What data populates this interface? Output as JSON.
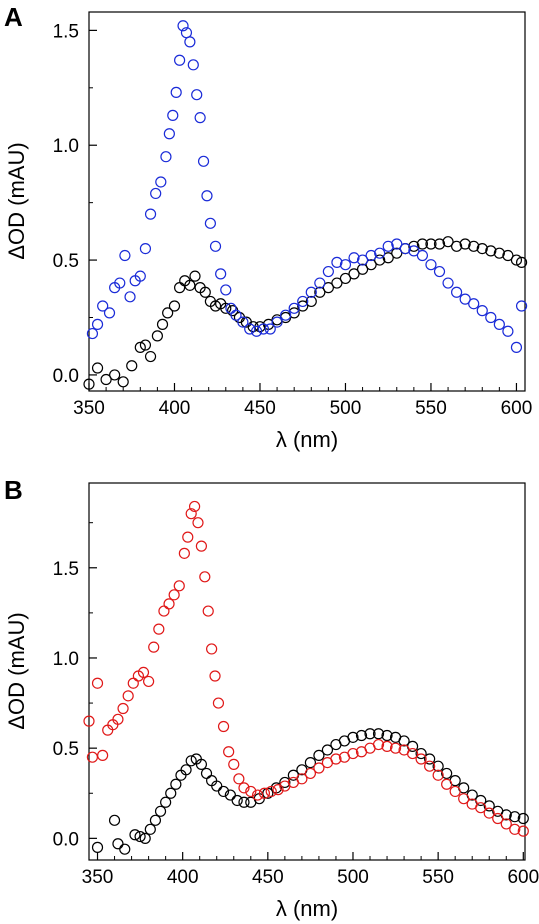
{
  "panels": [
    {
      "panel_label": "A",
      "marker_colors": [
        "#000000",
        "#1a2bd8"
      ]
    },
    {
      "panel_label": "B",
      "marker_colors": [
        "#000000",
        "#e01818"
      ]
    }
  ],
  "chart_data": [
    {
      "type": "scatter",
      "xlabel": "λ (nm)",
      "ylabel": "ΔOD (mAU)",
      "xlim": [
        350,
        605
      ],
      "ylim": [
        -0.07,
        1.58
      ],
      "x_ticks": [
        350,
        400,
        450,
        500,
        550,
        600
      ],
      "x_tick_labels": [
        "350",
        "400",
        "450",
        "500",
        "550",
        "600"
      ],
      "y_ticks": [
        0.0,
        0.5,
        1.0,
        1.5
      ],
      "y_tick_labels": [
        "0.0",
        "0.5",
        "1.0",
        "1.5"
      ],
      "marker": "open-circle",
      "series": [
        {
          "color": "#000000",
          "points": [
            [
              350,
              -0.04
            ],
            [
              355,
              0.03
            ],
            [
              360,
              -0.02
            ],
            [
              365,
              0.0
            ],
            [
              370,
              -0.03
            ],
            [
              375,
              0.04
            ],
            [
              380,
              0.12
            ],
            [
              383,
              0.13
            ],
            [
              386,
              0.08
            ],
            [
              390,
              0.17
            ],
            [
              393,
              0.22
            ],
            [
              396,
              0.27
            ],
            [
              400,
              0.3
            ],
            [
              403,
              0.38
            ],
            [
              406,
              0.41
            ],
            [
              409,
              0.39
            ],
            [
              412,
              0.43
            ],
            [
              415,
              0.38
            ],
            [
              418,
              0.36
            ],
            [
              421,
              0.32
            ],
            [
              424,
              0.3
            ],
            [
              427,
              0.31
            ],
            [
              430,
              0.29
            ],
            [
              434,
              0.28
            ],
            [
              438,
              0.25
            ],
            [
              442,
              0.23
            ],
            [
              446,
              0.21
            ],
            [
              450,
              0.21
            ],
            [
              455,
              0.22
            ],
            [
              460,
              0.24
            ],
            [
              465,
              0.25
            ],
            [
              470,
              0.27
            ],
            [
              475,
              0.3
            ],
            [
              480,
              0.32
            ],
            [
              485,
              0.36
            ],
            [
              490,
              0.38
            ],
            [
              495,
              0.4
            ],
            [
              500,
              0.42
            ],
            [
              505,
              0.44
            ],
            [
              510,
              0.46
            ],
            [
              515,
              0.48
            ],
            [
              520,
              0.5
            ],
            [
              525,
              0.51
            ],
            [
              530,
              0.53
            ],
            [
              535,
              0.55
            ],
            [
              540,
              0.56
            ],
            [
              545,
              0.57
            ],
            [
              550,
              0.57
            ],
            [
              555,
              0.57
            ],
            [
              560,
              0.58
            ],
            [
              565,
              0.56
            ],
            [
              570,
              0.57
            ],
            [
              575,
              0.56
            ],
            [
              580,
              0.55
            ],
            [
              585,
              0.54
            ],
            [
              590,
              0.53
            ],
            [
              595,
              0.52
            ],
            [
              600,
              0.5
            ],
            [
              603,
              0.49
            ]
          ]
        },
        {
          "color": "#1a2bd8",
          "points": [
            [
              352,
              0.18
            ],
            [
              355,
              0.22
            ],
            [
              358,
              0.3
            ],
            [
              362,
              0.27
            ],
            [
              365,
              0.38
            ],
            [
              368,
              0.4
            ],
            [
              371,
              0.52
            ],
            [
              374,
              0.34
            ],
            [
              377,
              0.41
            ],
            [
              380,
              0.43
            ],
            [
              383,
              0.55
            ],
            [
              386,
              0.7
            ],
            [
              389,
              0.79
            ],
            [
              392,
              0.84
            ],
            [
              395,
              0.95
            ],
            [
              397,
              1.05
            ],
            [
              399,
              1.13
            ],
            [
              401,
              1.23
            ],
            [
              403,
              1.37
            ],
            [
              405,
              1.52
            ],
            [
              407,
              1.49
            ],
            [
              409,
              1.45
            ],
            [
              411,
              1.35
            ],
            [
              413,
              1.22
            ],
            [
              415,
              1.12
            ],
            [
              417,
              0.93
            ],
            [
              419,
              0.78
            ],
            [
              421,
              0.66
            ],
            [
              424,
              0.56
            ],
            [
              427,
              0.44
            ],
            [
              430,
              0.37
            ],
            [
              433,
              0.29
            ],
            [
              436,
              0.26
            ],
            [
              440,
              0.23
            ],
            [
              444,
              0.2
            ],
            [
              448,
              0.19
            ],
            [
              452,
              0.2
            ],
            [
              456,
              0.2
            ],
            [
              460,
              0.23
            ],
            [
              465,
              0.26
            ],
            [
              470,
              0.29
            ],
            [
              475,
              0.32
            ],
            [
              480,
              0.36
            ],
            [
              485,
              0.4
            ],
            [
              490,
              0.45
            ],
            [
              495,
              0.49
            ],
            [
              500,
              0.48
            ],
            [
              505,
              0.51
            ],
            [
              510,
              0.5
            ],
            [
              515,
              0.52
            ],
            [
              520,
              0.53
            ],
            [
              525,
              0.56
            ],
            [
              530,
              0.57
            ],
            [
              535,
              0.55
            ],
            [
              540,
              0.54
            ],
            [
              545,
              0.52
            ],
            [
              550,
              0.48
            ],
            [
              555,
              0.45
            ],
            [
              560,
              0.4
            ],
            [
              565,
              0.36
            ],
            [
              570,
              0.33
            ],
            [
              575,
              0.31
            ],
            [
              580,
              0.28
            ],
            [
              585,
              0.25
            ],
            [
              590,
              0.22
            ],
            [
              595,
              0.19
            ],
            [
              600,
              0.12
            ],
            [
              603,
              0.3
            ]
          ]
        }
      ]
    },
    {
      "type": "scatter",
      "xlabel": "λ (nm)",
      "ylabel": "ΔOD (mAU)",
      "xlim": [
        345,
        601
      ],
      "ylim": [
        -0.12,
        1.97
      ],
      "x_ticks": [
        350,
        400,
        450,
        500,
        550,
        600
      ],
      "x_tick_labels": [
        "350",
        "400",
        "450",
        "500",
        "550",
        "600"
      ],
      "y_ticks": [
        0.0,
        0.5,
        1.0,
        1.5
      ],
      "y_tick_labels": [
        "0.0",
        "0.5",
        "1.0",
        "1.5"
      ],
      "marker": "open-circle",
      "series": [
        {
          "color": "#000000",
          "points": [
            [
              350,
              -0.05
            ],
            [
              360,
              0.1
            ],
            [
              362,
              -0.03
            ],
            [
              366,
              -0.06
            ],
            [
              372,
              0.02
            ],
            [
              375,
              0.01
            ],
            [
              378,
              0.0
            ],
            [
              381,
              0.05
            ],
            [
              384,
              0.1
            ],
            [
              387,
              0.15
            ],
            [
              390,
              0.2
            ],
            [
              393,
              0.25
            ],
            [
              396,
              0.3
            ],
            [
              399,
              0.35
            ],
            [
              402,
              0.38
            ],
            [
              405,
              0.43
            ],
            [
              408,
              0.44
            ],
            [
              411,
              0.41
            ],
            [
              414,
              0.36
            ],
            [
              417,
              0.32
            ],
            [
              420,
              0.29
            ],
            [
              424,
              0.26
            ],
            [
              428,
              0.24
            ],
            [
              432,
              0.21
            ],
            [
              436,
              0.2
            ],
            [
              440,
              0.2
            ],
            [
              445,
              0.22
            ],
            [
              450,
              0.25
            ],
            [
              455,
              0.28
            ],
            [
              460,
              0.31
            ],
            [
              465,
              0.35
            ],
            [
              470,
              0.38
            ],
            [
              475,
              0.42
            ],
            [
              480,
              0.46
            ],
            [
              485,
              0.49
            ],
            [
              490,
              0.52
            ],
            [
              495,
              0.54
            ],
            [
              500,
              0.56
            ],
            [
              505,
              0.57
            ],
            [
              510,
              0.58
            ],
            [
              515,
              0.58
            ],
            [
              520,
              0.57
            ],
            [
              525,
              0.56
            ],
            [
              530,
              0.54
            ],
            [
              535,
              0.51
            ],
            [
              540,
              0.47
            ],
            [
              545,
              0.44
            ],
            [
              550,
              0.4
            ],
            [
              555,
              0.36
            ],
            [
              560,
              0.32
            ],
            [
              565,
              0.28
            ],
            [
              570,
              0.24
            ],
            [
              575,
              0.21
            ],
            [
              580,
              0.18
            ],
            [
              585,
              0.15
            ],
            [
              590,
              0.13
            ],
            [
              595,
              0.12
            ],
            [
              600,
              0.11
            ]
          ]
        },
        {
          "color": "#e01818",
          "points": [
            [
              345,
              0.65
            ],
            [
              347,
              0.45
            ],
            [
              350,
              0.86
            ],
            [
              353,
              0.46
            ],
            [
              356,
              0.6
            ],
            [
              359,
              0.63
            ],
            [
              362,
              0.66
            ],
            [
              365,
              0.72
            ],
            [
              368,
              0.79
            ],
            [
              371,
              0.86
            ],
            [
              374,
              0.9
            ],
            [
              377,
              0.92
            ],
            [
              380,
              0.87
            ],
            [
              383,
              1.06
            ],
            [
              386,
              1.16
            ],
            [
              389,
              1.26
            ],
            [
              392,
              1.3
            ],
            [
              395,
              1.35
            ],
            [
              398,
              1.4
            ],
            [
              401,
              1.58
            ],
            [
              403,
              1.67
            ],
            [
              405,
              1.8
            ],
            [
              407,
              1.84
            ],
            [
              409,
              1.75
            ],
            [
              411,
              1.62
            ],
            [
              413,
              1.45
            ],
            [
              415,
              1.26
            ],
            [
              417,
              1.05
            ],
            [
              419,
              0.9
            ],
            [
              421,
              0.75
            ],
            [
              424,
              0.62
            ],
            [
              427,
              0.48
            ],
            [
              430,
              0.41
            ],
            [
              433,
              0.33
            ],
            [
              436,
              0.28
            ],
            [
              440,
              0.26
            ],
            [
              444,
              0.24
            ],
            [
              448,
              0.25
            ],
            [
              452,
              0.26
            ],
            [
              456,
              0.27
            ],
            [
              460,
              0.29
            ],
            [
              465,
              0.31
            ],
            [
              470,
              0.33
            ],
            [
              475,
              0.36
            ],
            [
              480,
              0.39
            ],
            [
              485,
              0.42
            ],
            [
              490,
              0.44
            ],
            [
              495,
              0.45
            ],
            [
              500,
              0.47
            ],
            [
              505,
              0.48
            ],
            [
              510,
              0.5
            ],
            [
              515,
              0.52
            ],
            [
              520,
              0.51
            ],
            [
              525,
              0.5
            ],
            [
              530,
              0.49
            ],
            [
              535,
              0.47
            ],
            [
              540,
              0.44
            ],
            [
              545,
              0.4
            ],
            [
              550,
              0.35
            ],
            [
              555,
              0.3
            ],
            [
              560,
              0.26
            ],
            [
              565,
              0.22
            ],
            [
              570,
              0.19
            ],
            [
              575,
              0.17
            ],
            [
              580,
              0.14
            ],
            [
              585,
              0.11
            ],
            [
              590,
              0.08
            ],
            [
              595,
              0.05
            ],
            [
              600,
              0.04
            ]
          ]
        }
      ]
    }
  ]
}
